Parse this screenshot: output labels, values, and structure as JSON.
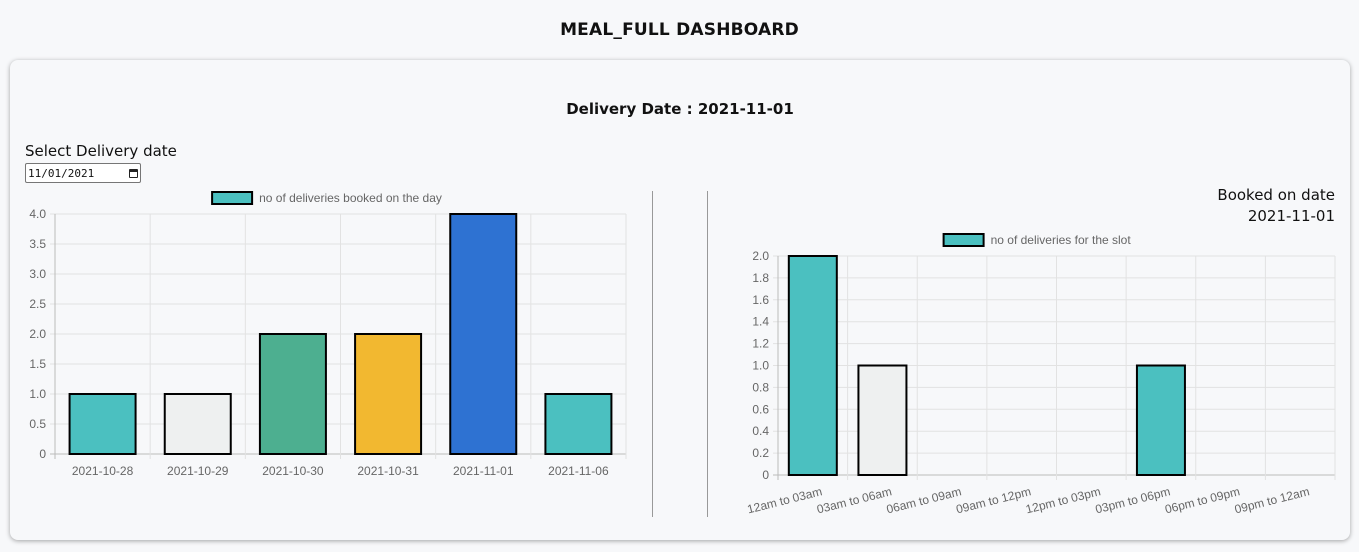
{
  "page": {
    "title": "MEAL_FULL DASHBOARD"
  },
  "card": {
    "delivery_heading": "Delivery Date : 2021-11-01",
    "select_label": "Select Delivery date",
    "date_input_value": "11/01/2021",
    "booked_on_label": "Booked on date",
    "booked_on_value": "2021-11-01"
  },
  "chart_data": [
    {
      "type": "bar",
      "categories": [
        "2021-10-28",
        "2021-10-29",
        "2021-10-30",
        "2021-10-31",
        "2021-11-01",
        "2021-11-06"
      ],
      "series": [
        {
          "name": "no of deliveries booked on the day",
          "values": [
            1,
            1,
            2,
            2,
            4,
            1
          ]
        }
      ],
      "colors": [
        "#4bc0c0",
        "#eef0f0",
        "#4daf90",
        "#f2b830",
        "#2e72d2",
        "#4bc0c0"
      ],
      "ylim": [
        0,
        4.0
      ],
      "yticks": [
        "0",
        "0.5",
        "1.0",
        "1.5",
        "2.0",
        "2.5",
        "3.0",
        "3.5",
        "4.0"
      ],
      "grid": true,
      "legend": "top"
    },
    {
      "type": "bar",
      "categories": [
        "12am to 03am",
        "03am to 06am",
        "06am to 09am",
        "09am to 12pm",
        "12pm to 03pm",
        "03pm to 06pm",
        "06pm to 09pm",
        "09pm to 12am"
      ],
      "series": [
        {
          "name": "no of deliveries for the slot",
          "values": [
            2,
            1,
            0,
            0,
            0,
            1,
            0,
            0
          ]
        }
      ],
      "colors": [
        "#4bc0c0",
        "#eef0f0",
        "#4bc0c0",
        "#4bc0c0",
        "#4bc0c0",
        "#4bc0c0",
        "#4bc0c0",
        "#4bc0c0"
      ],
      "ylim": [
        0,
        2.0
      ],
      "yticks": [
        "0",
        "0.2",
        "0.4",
        "0.6",
        "0.8",
        "1.0",
        "1.2",
        "1.4",
        "1.6",
        "1.8",
        "2.0"
      ],
      "grid": true,
      "legend": "top"
    }
  ]
}
